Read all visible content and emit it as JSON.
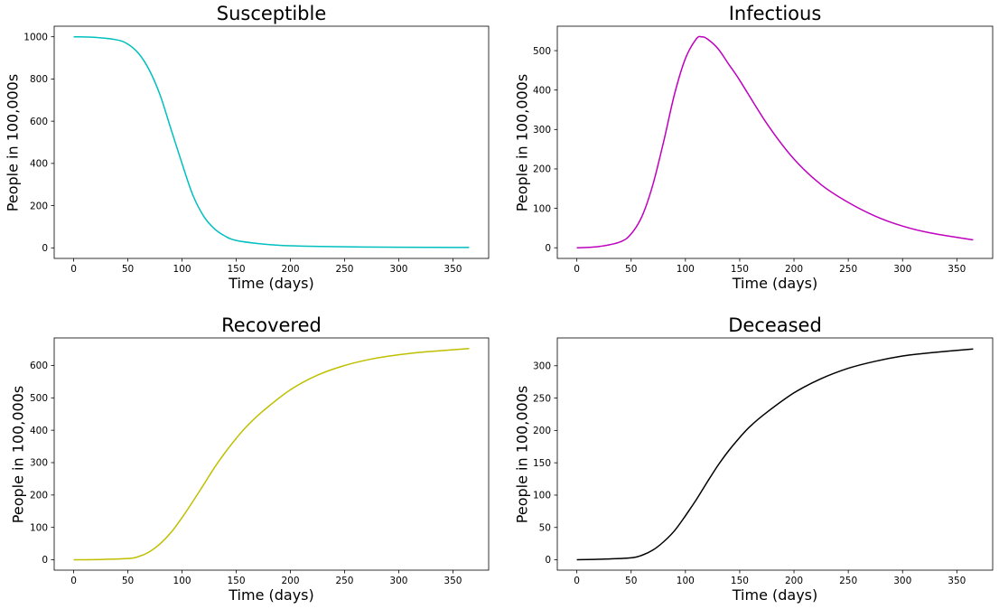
{
  "chart_data": [
    {
      "type": "line",
      "title": "Susceptible",
      "xlabel": "Time (days)",
      "ylabel": "People in 100,000s",
      "color": "#00bfbf",
      "xlim": [
        -18,
        383
      ],
      "ylim": [
        -50,
        1050
      ],
      "xticks": [
        0,
        50,
        100,
        150,
        200,
        250,
        300,
        350
      ],
      "yticks": [
        0,
        200,
        400,
        600,
        800,
        1000
      ],
      "x": [
        0,
        20,
        40,
        50,
        60,
        70,
        80,
        90,
        100,
        110,
        120,
        130,
        140,
        150,
        175,
        200,
        250,
        300,
        365
      ],
      "y": [
        1000,
        997,
        985,
        965,
        920,
        840,
        720,
        560,
        400,
        250,
        150,
        90,
        55,
        35,
        18,
        10,
        5,
        3,
        2
      ]
    },
    {
      "type": "line",
      "title": "Infectious",
      "xlabel": "Time (days)",
      "ylabel": "People in 100,000s",
      "color": "#bf00bf",
      "xlim": [
        -18,
        383
      ],
      "ylim": [
        -27,
        562
      ],
      "xticks": [
        0,
        50,
        100,
        150,
        200,
        250,
        300,
        350
      ],
      "yticks": [
        0,
        100,
        200,
        300,
        400,
        500
      ],
      "x": [
        0,
        20,
        40,
        50,
        60,
        70,
        80,
        90,
        100,
        110,
        115,
        120,
        130,
        140,
        150,
        175,
        200,
        225,
        250,
        275,
        300,
        325,
        365
      ],
      "y": [
        0,
        3,
        15,
        35,
        80,
        160,
        270,
        390,
        480,
        530,
        535,
        530,
        505,
        465,
        425,
        315,
        225,
        160,
        115,
        80,
        55,
        38,
        20
      ]
    },
    {
      "type": "line",
      "title": "Recovered",
      "xlabel": "Time (days)",
      "ylabel": "People in 100,000s",
      "color": "#bfbf00",
      "xlim": [
        -18,
        383
      ],
      "ylim": [
        -32,
        685
      ],
      "xticks": [
        0,
        50,
        100,
        150,
        200,
        250,
        300,
        350
      ],
      "yticks": [
        0,
        100,
        200,
        300,
        400,
        500,
        600
      ],
      "x": [
        0,
        25,
        50,
        60,
        70,
        80,
        90,
        100,
        110,
        120,
        130,
        140,
        150,
        160,
        175,
        200,
        225,
        250,
        275,
        300,
        325,
        365
      ],
      "y": [
        0,
        1,
        4,
        10,
        25,
        50,
        85,
        130,
        180,
        232,
        285,
        332,
        375,
        413,
        460,
        525,
        570,
        600,
        620,
        633,
        642,
        652
      ]
    },
    {
      "type": "line",
      "title": "Deceased",
      "xlabel": "Time (days)",
      "ylabel": "People in 100,000s",
      "color": "#000000",
      "xlim": [
        -18,
        383
      ],
      "ylim": [
        -16,
        343
      ],
      "xticks": [
        0,
        50,
        100,
        150,
        200,
        250,
        300,
        350
      ],
      "yticks": [
        0,
        50,
        100,
        150,
        200,
        250,
        300
      ],
      "x": [
        0,
        25,
        50,
        60,
        70,
        80,
        90,
        100,
        110,
        120,
        130,
        140,
        150,
        160,
        175,
        200,
        225,
        250,
        275,
        300,
        325,
        365
      ],
      "y": [
        0,
        1,
        3,
        7,
        15,
        28,
        45,
        68,
        93,
        120,
        146,
        169,
        189,
        207,
        228,
        258,
        280,
        296,
        307,
        315,
        320,
        326
      ]
    }
  ]
}
